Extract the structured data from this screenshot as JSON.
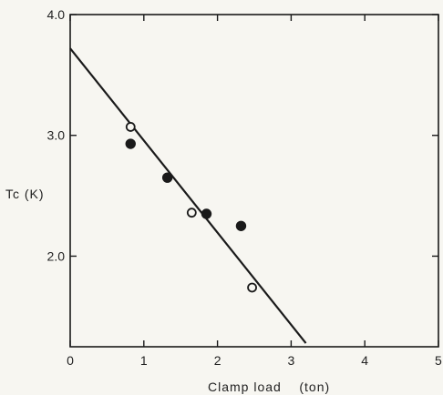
{
  "chart_data": {
    "type": "scatter",
    "title": "",
    "xlabel": "Clamp load    (ton)",
    "ylabel": "Tc (K)",
    "xlim": [
      0,
      5
    ],
    "ylim": [
      1.25,
      4.0
    ],
    "x_ticks": [
      0,
      1,
      2,
      3,
      4,
      5
    ],
    "x_tick_labels": [
      "0",
      "1",
      "2",
      "3",
      "4",
      "5"
    ],
    "y_ticks": [
      2.0,
      3.0,
      4.0
    ],
    "y_tick_labels": [
      "2.0",
      "3.0",
      "4.0"
    ],
    "grid": false,
    "series": [
      {
        "marker": "filled-circle",
        "color": "#1a1a1a",
        "points": [
          [
            0.82,
            2.93
          ],
          [
            1.32,
            2.65
          ],
          [
            1.85,
            2.35
          ],
          [
            2.32,
            2.25
          ]
        ]
      },
      {
        "marker": "open-circle",
        "color": "#1a1a1a",
        "points": [
          [
            0.82,
            3.07
          ],
          [
            1.65,
            2.36
          ],
          [
            2.47,
            1.74
          ]
        ]
      }
    ],
    "fit_line": {
      "color": "#1a1a1a",
      "points": [
        [
          0,
          3.72
        ],
        [
          3.2,
          1.28
        ]
      ]
    }
  }
}
